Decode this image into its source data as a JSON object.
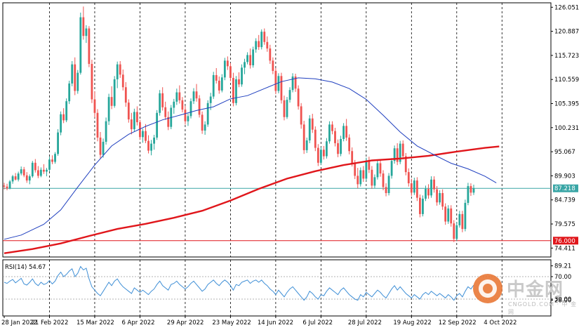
{
  "chart_data": {
    "type": "candlestick",
    "instrument_note": "Daily price chart with 50 and 200 moving averages and RSI(14)",
    "price_axis": {
      "ylim": [
        72.5,
        127.0
      ],
      "ticks": [
        "126.051",
        "120.887",
        "115.723",
        "110.559",
        "105.395",
        "100.231",
        "95.067",
        "89.903",
        "84.739",
        "79.575",
        "74.411"
      ]
    },
    "current_price_label": "87.218",
    "current_price": 87.218,
    "support_label": "76.000",
    "support": 76.0,
    "date_labels": [
      "28 Jan 2022",
      "21 Feb 2022",
      "15 Mar 2022",
      "6 Apr 2022",
      "29 Apr 2022",
      "23 May 2022",
      "14 Jun 2022",
      "6 Jul 2022",
      "28 Jul 2022",
      "19 Aug 2022",
      "12 Sep 2022",
      "4 Oct 2022"
    ],
    "rsi": {
      "label": "RSI(14) 54.67",
      "ylim": [
        0,
        100
      ],
      "ticks": [
        "89.21",
        "70.00",
        "30.00",
        "28.00"
      ],
      "levels": [
        70,
        30
      ]
    },
    "colors": {
      "up": "#26a69a",
      "down": "#ef5350",
      "ma_fast": "#1f3fbf",
      "ma_slow": "#e0161b",
      "current_line": "#3aa6a6",
      "support_line": "#e0161b",
      "rsi_line": "#3f8fd6",
      "grid_vertical": "#000000"
    },
    "candles_per_label": 16,
    "candles": [
      [
        87.8,
        88.4,
        87.0,
        87.6
      ],
      [
        87.6,
        88.2,
        86.8,
        87.2
      ],
      [
        87.2,
        89.0,
        87.0,
        88.7
      ],
      [
        88.7,
        90.1,
        88.2,
        89.8
      ],
      [
        89.8,
        90.5,
        88.9,
        89.1
      ],
      [
        89.1,
        90.8,
        88.7,
        90.4
      ],
      [
        90.4,
        91.9,
        90.0,
        91.3
      ],
      [
        91.3,
        91.8,
        89.6,
        90.0
      ],
      [
        90.0,
        90.7,
        88.4,
        88.9
      ],
      [
        88.9,
        90.2,
        88.1,
        89.8
      ],
      [
        89.8,
        93.1,
        89.5,
        92.7
      ],
      [
        92.7,
        93.5,
        90.6,
        91.1
      ],
      [
        91.1,
        92.0,
        89.4,
        89.9
      ],
      [
        89.9,
        91.7,
        89.6,
        91.2
      ],
      [
        91.2,
        92.4,
        90.3,
        90.8
      ],
      [
        90.8,
        91.6,
        89.8,
        91.2
      ],
      [
        91.2,
        94.0,
        90.9,
        93.4
      ],
      [
        93.4,
        94.3,
        92.4,
        92.9
      ],
      [
        92.9,
        95.0,
        92.5,
        94.6
      ],
      [
        94.6,
        99.9,
        94.2,
        99.2
      ],
      [
        99.2,
        103.7,
        98.6,
        103.1
      ],
      [
        103.1,
        104.4,
        101.2,
        101.8
      ],
      [
        101.8,
        106.5,
        101.4,
        105.9
      ],
      [
        105.9,
        110.3,
        105.3,
        109.7
      ],
      [
        109.7,
        114.5,
        109.1,
        113.8
      ],
      [
        113.8,
        115.3,
        107.2,
        108.1
      ],
      [
        108.1,
        112.6,
        107.5,
        112.0
      ],
      [
        112.0,
        124.9,
        111.6,
        123.9
      ],
      [
        123.9,
        126.2,
        119.1,
        119.9
      ],
      [
        119.9,
        122.2,
        118.4,
        121.5
      ],
      [
        121.5,
        122.0,
        113.2,
        113.9
      ],
      [
        113.9,
        114.8,
        105.5,
        106.3
      ],
      [
        106.3,
        108.0,
        102.4,
        103.4
      ],
      [
        103.4,
        104.2,
        97.3,
        98.1
      ],
      [
        98.1,
        99.3,
        93.6,
        94.4
      ],
      [
        94.4,
        97.9,
        93.8,
        97.2
      ],
      [
        97.2,
        102.4,
        96.6,
        101.6
      ],
      [
        101.6,
        107.5,
        100.8,
        106.8
      ],
      [
        106.8,
        109.1,
        104.2,
        104.9
      ],
      [
        104.9,
        111.3,
        104.5,
        110.6
      ],
      [
        110.6,
        114.4,
        108.7,
        113.8
      ],
      [
        113.8,
        114.5,
        110.9,
        111.6
      ],
      [
        111.6,
        112.7,
        108.2,
        108.9
      ],
      [
        108.9,
        110.0,
        104.7,
        105.6
      ],
      [
        105.6,
        106.3,
        101.3,
        102.0
      ],
      [
        102.0,
        103.4,
        98.8,
        99.9
      ],
      [
        99.9,
        104.3,
        99.4,
        103.6
      ],
      [
        103.6,
        104.8,
        100.7,
        101.4
      ],
      [
        101.4,
        101.9,
        97.6,
        98.2
      ],
      [
        98.2,
        100.0,
        97.0,
        99.5
      ],
      [
        99.5,
        101.0,
        96.9,
        97.4
      ],
      [
        97.4,
        98.6,
        94.7,
        95.3
      ],
      [
        95.3,
        97.6,
        94.3,
        96.8
      ],
      [
        96.8,
        98.7,
        95.5,
        98.1
      ],
      [
        98.1,
        104.0,
        97.6,
        103.4
      ],
      [
        103.4,
        108.3,
        102.8,
        107.6
      ],
      [
        107.6,
        108.9,
        103.9,
        104.6
      ],
      [
        104.6,
        105.8,
        101.9,
        102.5
      ],
      [
        102.5,
        103.7,
        99.7,
        100.4
      ],
      [
        100.4,
        105.1,
        99.9,
        104.5
      ],
      [
        104.5,
        106.4,
        103.2,
        105.8
      ],
      [
        105.8,
        108.6,
        105.1,
        107.8
      ],
      [
        107.8,
        109.3,
        105.4,
        106.1
      ],
      [
        106.1,
        106.8,
        103.5,
        104.1
      ],
      [
        104.1,
        104.9,
        100.9,
        101.6
      ],
      [
        101.6,
        103.3,
        100.6,
        102.7
      ],
      [
        102.7,
        106.5,
        102.2,
        105.9
      ],
      [
        105.9,
        108.7,
        105.3,
        108.0
      ],
      [
        108.0,
        109.6,
        105.8,
        106.5
      ],
      [
        106.5,
        107.2,
        102.4,
        103.0
      ],
      [
        103.0,
        103.7,
        98.9,
        99.6
      ],
      [
        99.6,
        101.6,
        98.7,
        100.9
      ],
      [
        100.9,
        106.1,
        100.4,
        105.5
      ],
      [
        105.5,
        107.7,
        104.0,
        106.9
      ],
      [
        106.9,
        112.2,
        106.4,
        111.5
      ],
      [
        111.5,
        113.0,
        109.7,
        110.3
      ],
      [
        110.3,
        111.2,
        107.5,
        108.2
      ],
      [
        108.2,
        111.7,
        107.8,
        111.0
      ],
      [
        111.0,
        115.2,
        110.4,
        114.6
      ],
      [
        114.6,
        115.5,
        112.6,
        113.4
      ],
      [
        113.4,
        114.1,
        110.2,
        110.9
      ],
      [
        110.9,
        112.0,
        104.8,
        105.5
      ],
      [
        105.5,
        111.3,
        105.0,
        110.6
      ],
      [
        110.6,
        112.1,
        108.9,
        109.5
      ],
      [
        109.5,
        113.8,
        109.0,
        113.1
      ],
      [
        113.1,
        115.0,
        111.7,
        114.3
      ],
      [
        114.3,
        116.4,
        113.8,
        115.8
      ],
      [
        115.8,
        117.2,
        112.9,
        113.6
      ],
      [
        113.6,
        117.6,
        113.1,
        117.0
      ],
      [
        117.0,
        119.4,
        116.3,
        118.8
      ],
      [
        118.8,
        120.1,
        116.9,
        117.5
      ],
      [
        117.5,
        121.3,
        117.0,
        120.8
      ],
      [
        120.8,
        121.5,
        118.0,
        118.6
      ],
      [
        118.6,
        119.8,
        116.5,
        117.2
      ],
      [
        117.2,
        118.0,
        113.9,
        114.6
      ],
      [
        114.6,
        115.3,
        111.7,
        112.4
      ],
      [
        112.4,
        113.0,
        107.4,
        108.1
      ],
      [
        108.1,
        111.9,
        107.6,
        111.3
      ],
      [
        111.3,
        112.0,
        105.4,
        106.1
      ],
      [
        106.1,
        107.1,
        101.8,
        102.5
      ],
      [
        102.5,
        106.8,
        102.1,
        106.2
      ],
      [
        106.2,
        108.9,
        105.6,
        108.3
      ],
      [
        108.3,
        111.9,
        107.8,
        111.2
      ],
      [
        111.2,
        111.8,
        107.9,
        108.6
      ],
      [
        108.6,
        109.3,
        104.1,
        104.8
      ],
      [
        104.8,
        105.5,
        100.0,
        100.9
      ],
      [
        100.9,
        101.7,
        94.6,
        95.4
      ],
      [
        95.4,
        98.1,
        94.8,
        97.5
      ],
      [
        97.5,
        102.9,
        96.9,
        102.2
      ],
      [
        102.2,
        103.2,
        99.1,
        99.8
      ],
      [
        99.8,
        100.5,
        95.2,
        95.9
      ],
      [
        95.9,
        96.7,
        92.0,
        92.7
      ],
      [
        92.7,
        96.1,
        92.2,
        95.5
      ],
      [
        95.5,
        96.3,
        93.4,
        94.1
      ],
      [
        94.1,
        98.0,
        93.6,
        97.3
      ],
      [
        97.3,
        101.6,
        96.8,
        100.9
      ],
      [
        100.9,
        101.6,
        98.8,
        99.5
      ],
      [
        99.5,
        100.2,
        96.2,
        96.9
      ],
      [
        96.9,
        97.7,
        93.9,
        94.6
      ],
      [
        94.6,
        98.5,
        94.1,
        97.8
      ],
      [
        97.8,
        101.2,
        97.3,
        100.6
      ],
      [
        100.6,
        102.1,
        97.4,
        98.1
      ],
      [
        98.1,
        98.8,
        94.5,
        95.2
      ],
      [
        95.2,
        96.0,
        91.9,
        92.6
      ],
      [
        92.6,
        93.3,
        89.2,
        89.9
      ],
      [
        89.9,
        91.6,
        87.2,
        88.1
      ],
      [
        88.1,
        91.7,
        87.6,
        91.1
      ],
      [
        91.1,
        92.0,
        88.6,
        89.3
      ],
      [
        89.3,
        93.8,
        88.8,
        93.1
      ],
      [
        93.1,
        94.0,
        90.5,
        91.2
      ],
      [
        91.2,
        92.0,
        87.1,
        87.8
      ],
      [
        87.8,
        90.2,
        87.3,
        89.6
      ],
      [
        89.6,
        93.2,
        89.1,
        92.6
      ],
      [
        92.6,
        93.5,
        89.7,
        90.4
      ],
      [
        90.4,
        91.1,
        86.8,
        87.5
      ],
      [
        87.5,
        88.3,
        85.5,
        86.2
      ],
      [
        86.2,
        90.5,
        85.7,
        89.9
      ],
      [
        89.9,
        93.7,
        89.3,
        93.1
      ],
      [
        93.1,
        96.4,
        92.5,
        95.8
      ],
      [
        95.8,
        96.9,
        92.2,
        92.9
      ],
      [
        92.9,
        97.4,
        92.4,
        96.8
      ],
      [
        96.8,
        97.5,
        93.4,
        94.1
      ],
      [
        94.1,
        94.8,
        90.0,
        90.7
      ],
      [
        90.7,
        91.5,
        87.6,
        88.3
      ],
      [
        88.3,
        89.3,
        85.6,
        86.3
      ],
      [
        86.3,
        89.5,
        85.8,
        88.9
      ],
      [
        88.9,
        89.6,
        84.5,
        85.2
      ],
      [
        85.2,
        85.9,
        81.0,
        81.7
      ],
      [
        81.7,
        85.7,
        81.2,
        85.0
      ],
      [
        85.0,
        87.8,
        84.5,
        87.1
      ],
      [
        87.1,
        88.1,
        85.0,
        85.7
      ],
      [
        85.7,
        89.8,
        85.2,
        89.1
      ],
      [
        89.1,
        89.8,
        86.3,
        87.0
      ],
      [
        87.0,
        87.7,
        83.5,
        84.2
      ],
      [
        84.2,
        86.8,
        83.7,
        86.2
      ],
      [
        86.2,
        87.0,
        82.6,
        83.3
      ],
      [
        83.3,
        84.0,
        79.4,
        80.1
      ],
      [
        80.1,
        83.6,
        79.6,
        82.9
      ],
      [
        82.9,
        83.6,
        79.0,
        79.7
      ],
      [
        79.7,
        80.4,
        75.7,
        76.4
      ],
      [
        76.4,
        80.0,
        75.9,
        79.3
      ],
      [
        79.3,
        82.4,
        78.8,
        81.7
      ],
      [
        81.7,
        82.4,
        77.8,
        78.5
      ],
      [
        78.5,
        84.8,
        78.0,
        84.1
      ],
      [
        84.1,
        88.4,
        83.6,
        87.7
      ],
      [
        87.7,
        88.3,
        85.6,
        86.3
      ],
      [
        86.3,
        88.0,
        85.8,
        87.2
      ]
    ],
    "ma_fast": {
      "name": "",
      "points": [
        [
          0,
          76.3
        ],
        [
          6,
          77.2
        ],
        [
          14,
          79.5
        ],
        [
          20,
          82.6
        ],
        [
          26,
          87.5
        ],
        [
          32,
          92.2
        ],
        [
          38,
          96.3
        ],
        [
          44,
          98.8
        ],
        [
          50,
          100.5
        ],
        [
          56,
          101.9
        ],
        [
          62,
          102.9
        ],
        [
          68,
          103.9
        ],
        [
          74,
          104.7
        ],
        [
          80,
          106.4
        ],
        [
          86,
          107.1
        ],
        [
          92,
          108.6
        ],
        [
          98,
          110.1
        ],
        [
          104,
          110.9
        ],
        [
          110,
          110.7
        ],
        [
          116,
          110.0
        ],
        [
          122,
          108.6
        ],
        [
          128,
          106.3
        ],
        [
          134,
          102.9
        ],
        [
          140,
          99.3
        ],
        [
          146,
          96.3
        ],
        [
          152,
          94.4
        ],
        [
          158,
          92.6
        ],
        [
          164,
          91.4
        ],
        [
          170,
          89.8
        ],
        [
          174,
          88.4
        ]
      ]
    },
    "ma_slow": {
      "name": "",
      "points": [
        [
          0,
          73.3
        ],
        [
          10,
          74.2
        ],
        [
          20,
          75.4
        ],
        [
          30,
          77.0
        ],
        [
          40,
          78.5
        ],
        [
          50,
          79.6
        ],
        [
          60,
          80.9
        ],
        [
          70,
          82.4
        ],
        [
          80,
          84.6
        ],
        [
          90,
          87.1
        ],
        [
          100,
          89.3
        ],
        [
          110,
          90.9
        ],
        [
          120,
          92.2
        ],
        [
          130,
          93.2
        ],
        [
          140,
          93.6
        ],
        [
          150,
          94.2
        ],
        [
          160,
          95.1
        ],
        [
          170,
          95.9
        ],
        [
          175,
          96.2
        ]
      ]
    },
    "rsi_values": [
      60,
      58,
      62,
      65,
      59,
      63,
      67,
      57,
      55,
      60,
      66,
      58,
      54,
      60,
      56,
      58,
      63,
      57,
      62,
      72,
      78,
      70,
      74,
      80,
      84,
      70,
      76,
      88,
      82,
      85,
      66,
      52,
      46,
      40,
      36,
      44,
      52,
      60,
      54,
      62,
      66,
      58,
      52,
      48,
      44,
      40,
      50,
      46,
      42,
      46,
      42,
      38,
      44,
      48,
      56,
      62,
      54,
      50,
      46,
      56,
      58,
      62,
      56,
      52,
      48,
      52,
      58,
      62,
      56,
      50,
      44,
      48,
      56,
      60,
      64,
      58,
      54,
      60,
      64,
      60,
      54,
      46,
      56,
      54,
      60,
      62,
      64,
      58,
      62,
      64,
      60,
      64,
      58,
      54,
      48,
      44,
      38,
      46,
      40,
      34,
      42,
      48,
      52,
      46,
      40,
      34,
      28,
      34,
      44,
      40,
      34,
      30,
      38,
      36,
      44,
      50,
      46,
      42,
      38,
      46,
      50,
      44,
      38,
      34,
      30,
      28,
      38,
      34,
      42,
      38,
      34,
      40,
      46,
      42,
      36,
      32,
      40,
      48,
      54,
      46,
      52,
      46,
      40,
      36,
      32,
      38,
      34,
      30,
      38,
      42,
      38,
      44,
      40,
      36,
      40,
      36,
      32,
      38,
      34,
      28,
      36,
      40,
      34,
      44,
      52,
      48,
      55
    ]
  }
}
